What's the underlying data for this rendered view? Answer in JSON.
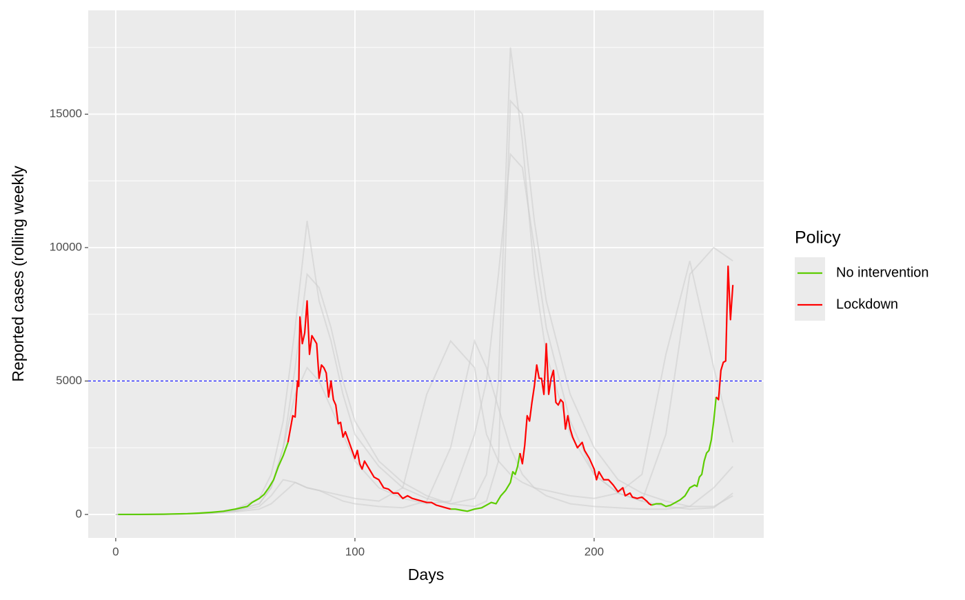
{
  "chart_data": {
    "type": "line",
    "x_label": "Days",
    "y_label": "Reported cases (rolling weekly",
    "legend_title": "Policy",
    "legend_position": "right",
    "xlim": [
      -11.5,
      270.9
    ],
    "ylim": [
      -880,
      18890
    ],
    "xticks": [
      0,
      100,
      200
    ],
    "yticks": [
      0,
      5000,
      10000,
      15000
    ],
    "minor_xticks": [
      50,
      150,
      250
    ],
    "minor_yticks": [
      2500,
      7500,
      12500,
      17500
    ],
    "grid": true,
    "hline": {
      "value": 5000,
      "color": "#0000ff"
    },
    "series": [
      {
        "name": "No intervention",
        "color": "#5ccc00",
        "x": [
          1,
          10,
          20,
          30,
          35,
          40,
          45,
          50,
          55,
          57,
          60,
          62,
          64,
          66,
          68,
          70,
          72,
          100,
          140,
          142,
          145,
          147,
          150,
          153,
          155,
          157,
          159,
          161,
          163,
          165,
          166,
          167,
          168,
          169,
          200,
          224,
          226,
          228,
          230,
          232,
          234,
          236,
          238,
          240,
          242,
          243,
          244,
          245,
          246,
          247,
          248,
          249,
          250,
          251
        ],
        "values": [
          0,
          0,
          10,
          30,
          50,
          80,
          120,
          200,
          300,
          450,
          600,
          750,
          1000,
          1300,
          1800,
          2200,
          2700,
          null,
          200,
          200,
          150,
          120,
          200,
          250,
          350,
          450,
          400,
          700,
          900,
          1200,
          1600,
          1500,
          1800,
          2300,
          null,
          350,
          400,
          400,
          300,
          350,
          450,
          550,
          700,
          1000,
          1100,
          1050,
          1400,
          1500,
          2000,
          2300,
          2400,
          2800,
          3500,
          4400
        ]
      },
      {
        "name": "Lockdown",
        "color": "#ff0000",
        "x": [
          72,
          74,
          75,
          76,
          76.5,
          77,
          78,
          79,
          80,
          81,
          82,
          84,
          85,
          86,
          87,
          88,
          89,
          90,
          91,
          92,
          93,
          94,
          95,
          96,
          98,
          100,
          101,
          102,
          103,
          104,
          106,
          108,
          110,
          112,
          114,
          116,
          118,
          120,
          122,
          124,
          126,
          128,
          130,
          132,
          134,
          136,
          138,
          140,
          155,
          169,
          170,
          171,
          172,
          173,
          174,
          175,
          176,
          177,
          178,
          179,
          180,
          181,
          182,
          183,
          184,
          185,
          186,
          187,
          188,
          189,
          190,
          191,
          193,
          195,
          196,
          198,
          200,
          201,
          202,
          204,
          206,
          208,
          210,
          212,
          213,
          215,
          216,
          218,
          220,
          222,
          223,
          224,
          237,
          251,
          252,
          253,
          254,
          255,
          256,
          257,
          258
        ],
        "values": [
          2700,
          3700,
          3650,
          5000,
          4800,
          7400,
          6400,
          6800,
          8000,
          6000,
          6700,
          6400,
          5100,
          5600,
          5500,
          5300,
          4400,
          5000,
          4300,
          4100,
          3400,
          3450,
          2900,
          3100,
          2600,
          2100,
          2400,
          1900,
          1700,
          2000,
          1700,
          1400,
          1300,
          1000,
          950,
          800,
          800,
          600,
          700,
          600,
          550,
          500,
          450,
          450,
          350,
          300,
          250,
          200,
          null,
          2300,
          1900,
          2600,
          3700,
          3500,
          4200,
          4800,
          5600,
          5100,
          5100,
          4500,
          6400,
          4500,
          5100,
          5400,
          4200,
          4100,
          4300,
          4200,
          3200,
          3700,
          3200,
          2900,
          2500,
          2700,
          2400,
          2100,
          1700,
          1300,
          1600,
          1300,
          1300,
          1100,
          850,
          1000,
          700,
          800,
          650,
          600,
          650,
          500,
          400,
          350,
          null,
          4400,
          4300,
          5400,
          5700,
          5750,
          9300,
          7300,
          8600
        ]
      }
    ],
    "simulation_color": "#cccccc",
    "simulation_x": [
      0,
      20,
      40,
      50,
      60,
      65,
      70,
      75,
      80,
      85,
      90,
      95,
      100,
      110,
      120,
      130,
      140,
      150,
      155,
      160,
      165,
      170,
      175,
      180,
      190,
      200,
      210,
      220,
      230,
      240,
      250,
      258
    ],
    "simulations": [
      [
        0,
        5,
        60,
        200,
        600,
        1500,
        3500,
        7000,
        11000,
        8000,
        6500,
        4500,
        3000,
        1800,
        1000,
        600,
        400,
        600,
        1500,
        5000,
        17500,
        14000,
        9000,
        6000,
        3000,
        1500,
        800,
        500,
        300,
        200,
        250,
        800
      ],
      [
        0,
        5,
        50,
        150,
        400,
        1000,
        2500,
        5500,
        9000,
        8500,
        7000,
        5000,
        3500,
        2000,
        1200,
        700,
        400,
        300,
        500,
        2000,
        15500,
        15000,
        11000,
        8000,
        4500,
        2500,
        1300,
        800,
        500,
        300,
        300,
        700
      ],
      [
        0,
        5,
        40,
        100,
        200,
        400,
        800,
        1200,
        1000,
        900,
        800,
        700,
        600,
        500,
        1000,
        4500,
        6500,
        5500,
        3000,
        2000,
        1500,
        1200,
        1000,
        900,
        700,
        600,
        800,
        1500,
        6000,
        9500,
        5500,
        2700
      ],
      [
        0,
        5,
        40,
        120,
        300,
        700,
        1300,
        1200,
        1000,
        900,
        700,
        500,
        400,
        300,
        250,
        500,
        2500,
        6500,
        5500,
        4000,
        2500,
        1500,
        1000,
        700,
        400,
        300,
        250,
        200,
        200,
        300,
        1000,
        1800
      ],
      [
        0,
        5,
        50,
        150,
        400,
        1000,
        2500,
        4500,
        5500,
        5000,
        4000,
        3000,
        2000,
        1000,
        600,
        400,
        500,
        3000,
        5000,
        9000,
        13500,
        13000,
        10000,
        7000,
        3500,
        1500,
        800,
        500,
        3000,
        9000,
        10000,
        9500
      ]
    ]
  }
}
